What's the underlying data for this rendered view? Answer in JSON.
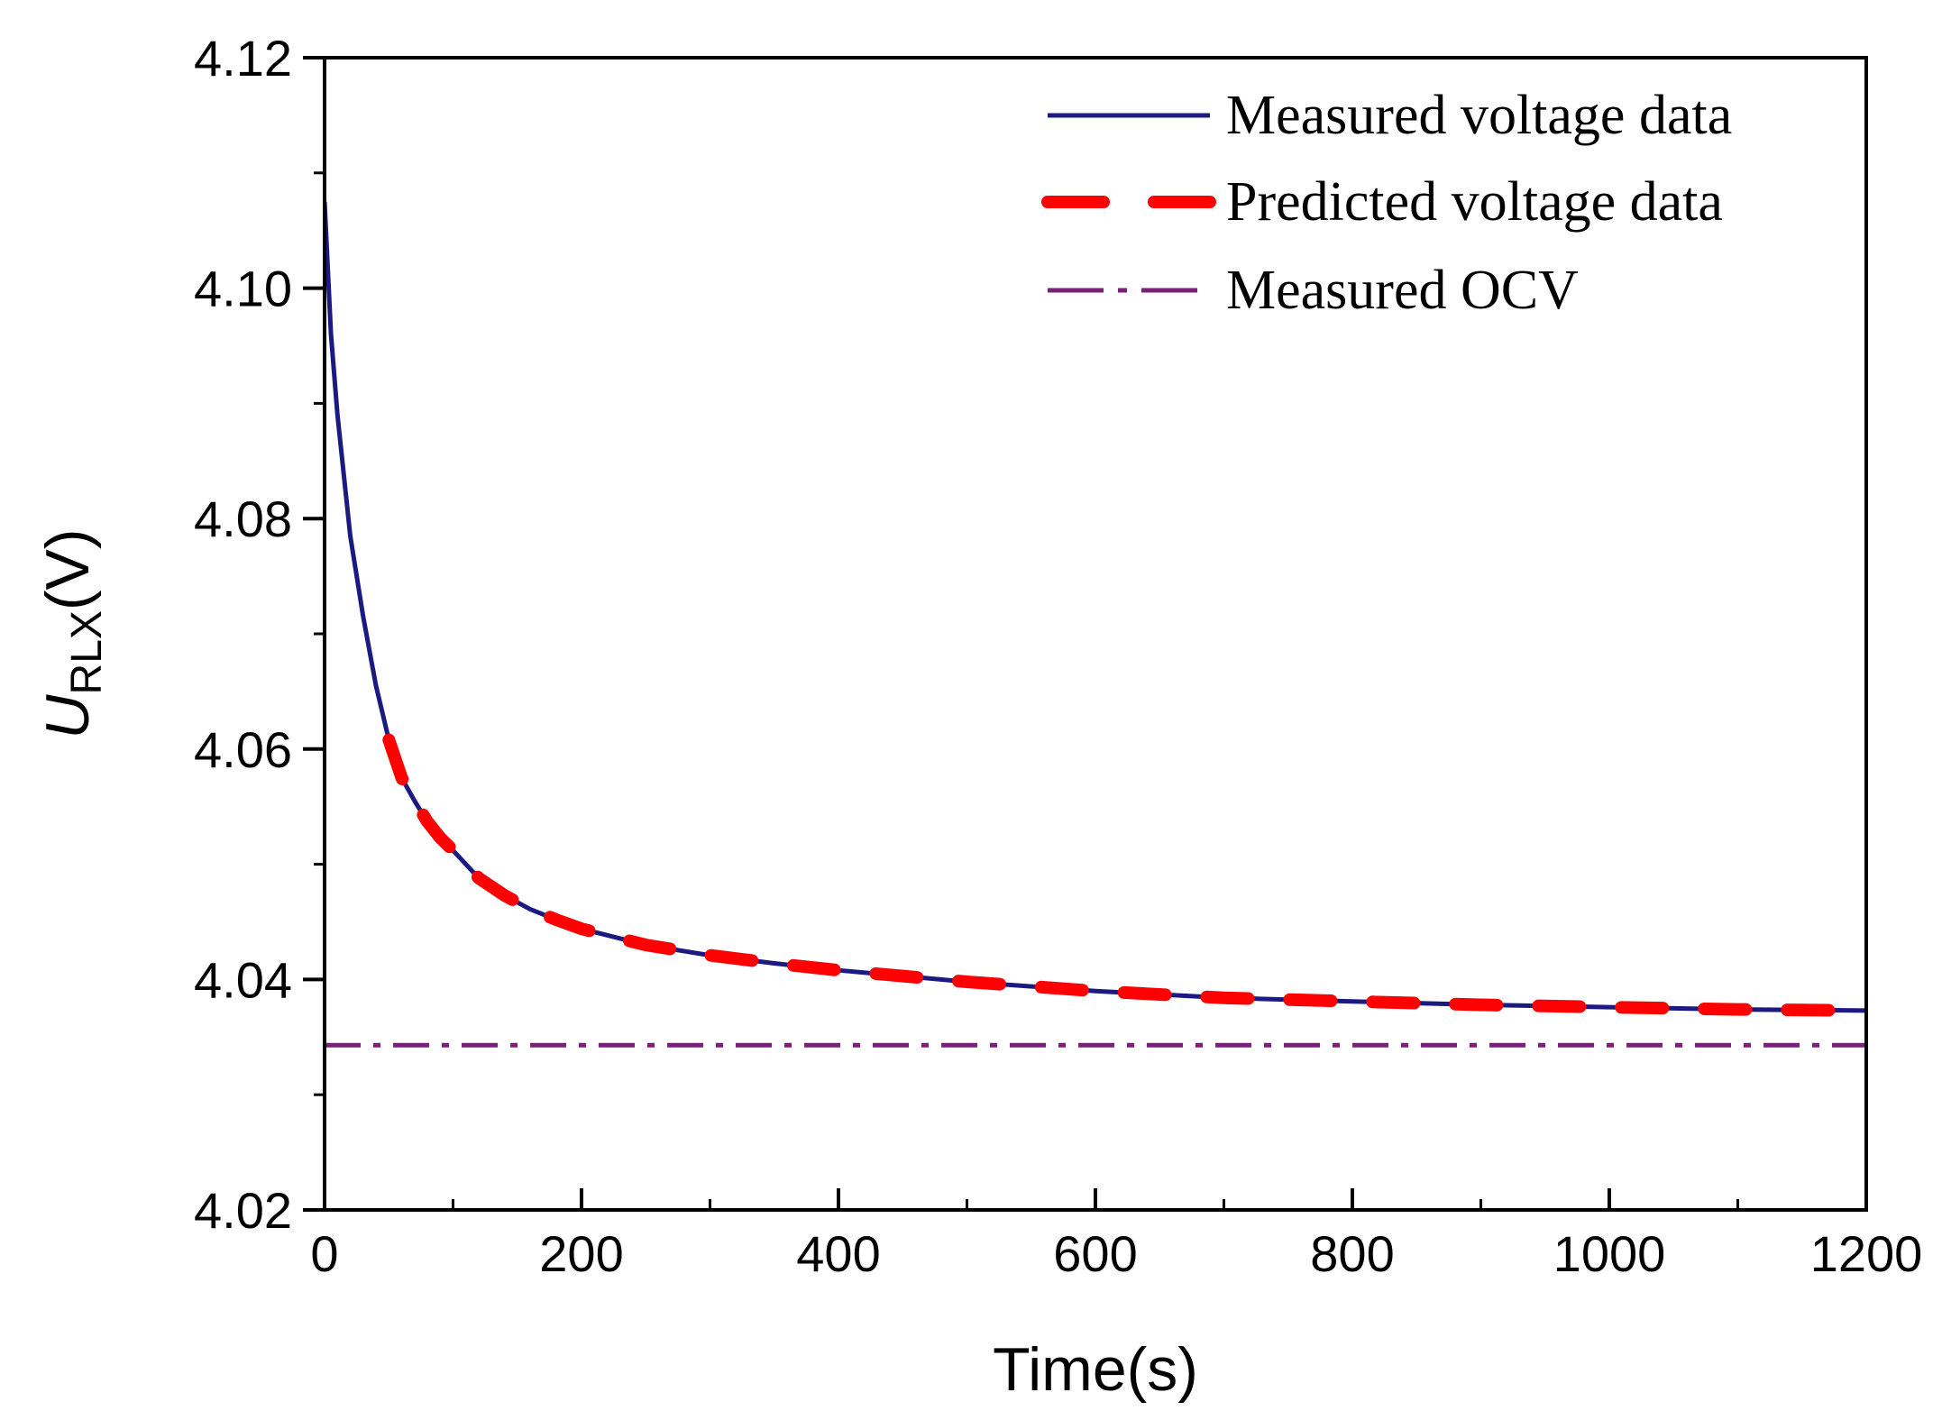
{
  "chart_data": {
    "type": "line",
    "title": "",
    "xlabel": "Time(s)",
    "ylabel": {
      "symbol": "U",
      "subscript": "RLX",
      "unit": "(V)"
    },
    "xlim": [
      0,
      1200
    ],
    "ylim": [
      4.02,
      4.12
    ],
    "xticks": [
      0,
      200,
      400,
      600,
      800,
      1000,
      1200
    ],
    "xtick_labels": [
      "0",
      "200",
      "400",
      "600",
      "800",
      "1000",
      "1200"
    ],
    "yticks": [
      4.02,
      4.04,
      4.06,
      4.08,
      4.1,
      4.12
    ],
    "ytick_labels": [
      "4.02",
      "4.04",
      "4.06",
      "4.08",
      "4.10",
      "4.12"
    ],
    "grid": false,
    "legend_position": "top-right",
    "series": [
      {
        "name": "Measured voltage data",
        "style": "solid",
        "color": "#1a1a80",
        "x": [
          0,
          5,
          10,
          20,
          30,
          40,
          50,
          60,
          70,
          80,
          90,
          100,
          120,
          140,
          160,
          180,
          200,
          250,
          300,
          350,
          400,
          450,
          500,
          600,
          700,
          800,
          900,
          1000,
          1100,
          1200
        ],
        "y": [
          4.1075,
          4.096,
          4.089,
          4.0785,
          4.0715,
          4.0655,
          4.0608,
          4.0575,
          4.0555,
          4.0537,
          4.0523,
          4.0512,
          4.0488,
          4.0473,
          4.0461,
          4.0452,
          4.0444,
          4.043,
          4.0421,
          4.0414,
          4.0408,
          4.0403,
          4.0398,
          4.039,
          4.0384,
          4.0381,
          4.0378,
          4.0376,
          4.0374,
          4.0373
        ]
      },
      {
        "name": "Predicted voltage data",
        "style": "dashed",
        "color": "#ff0000",
        "x": [
          50,
          60,
          70,
          80,
          90,
          100,
          120,
          140,
          160,
          180,
          200,
          250,
          300,
          350,
          400,
          450,
          500,
          600,
          700,
          800,
          900,
          1000,
          1100,
          1200
        ],
        "y": [
          4.0608,
          4.0575,
          4.0555,
          4.0537,
          4.0523,
          4.0512,
          4.0488,
          4.0473,
          4.0461,
          4.0452,
          4.0444,
          4.043,
          4.0421,
          4.0414,
          4.0408,
          4.0403,
          4.0398,
          4.039,
          4.0384,
          4.0381,
          4.0378,
          4.0376,
          4.0374,
          4.0373
        ]
      },
      {
        "name": "Measured OCV",
        "style": "dash-dot",
        "color": "#7a1f7a",
        "x": [
          0,
          1200
        ],
        "y": [
          4.0343,
          4.0343
        ]
      }
    ]
  }
}
